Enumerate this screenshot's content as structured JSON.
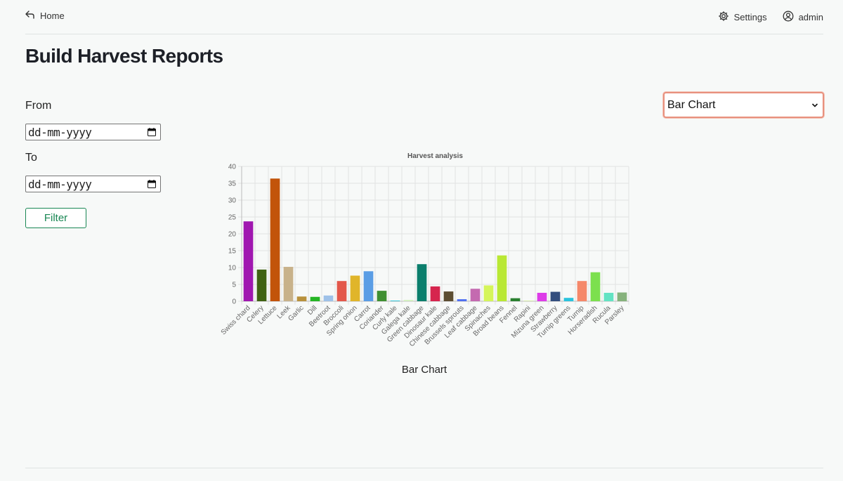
{
  "nav": {
    "home_label": "Home",
    "settings_label": "Settings",
    "user_label": "admin"
  },
  "page": {
    "title": "Build Harvest Reports"
  },
  "filters": {
    "from_label": "From",
    "from_value": "dd-mm-yyyy",
    "to_label": "To",
    "to_value": "dd-mm-yyyy",
    "filter_button": "Filter"
  },
  "chart_type_select": {
    "selected": "Bar Chart"
  },
  "chart_caption": "Bar Chart",
  "chart_data": {
    "type": "bar",
    "title": "Harvest analysis",
    "ylim": [
      0,
      40
    ],
    "yticks": [
      0,
      5,
      10,
      15,
      20,
      25,
      30,
      35,
      40
    ],
    "grid": true,
    "categories": [
      "Swiss chard",
      "Celery",
      "Lettuce",
      "Leek",
      "Garlic",
      "Dill",
      "Beetroot",
      "Broccoli",
      "Spring onion",
      "Carrot",
      "Coriander",
      "Curly kale",
      "Galega kale",
      "Green cabbage",
      "Dinosaur kale",
      "Chinese cabbage",
      "Brussels sprouts",
      "Leaf cabbage",
      "Spinaches",
      "Broad beans",
      "Fennel",
      "Rapini",
      "Mizuna green",
      "Strawberry",
      "Turnip greens",
      "Turnip",
      "Horseradish",
      "Rucula",
      "Parsley"
    ],
    "values": [
      23.7,
      9.4,
      36.4,
      10.2,
      1.4,
      1.3,
      1.7,
      6.0,
      7.6,
      8.9,
      3.1,
      0.2,
      0.4,
      11.0,
      4.4,
      2.9,
      0.6,
      3.7,
      4.7,
      13.6,
      0.9,
      0.2,
      2.5,
      2.8,
      1.0,
      6.0,
      8.6,
      2.5,
      2.6
    ],
    "colors": [
      "#a017b0",
      "#3f6212",
      "#c2540a",
      "#c8b28a",
      "#b8913c",
      "#24b524",
      "#9ec1e8",
      "#e3574a",
      "#e0b52a",
      "#5a9de5",
      "#3f8f32",
      "#2ec4d6",
      "#d3efc0",
      "#0b7e6c",
      "#d6254e",
      "#5c4d32",
      "#4f6ff0",
      "#c46ab0",
      "#d5f55a",
      "#b9e834",
      "#2a8030",
      "#d7eda6",
      "#dd3ce8",
      "#344f7e",
      "#29c3dd",
      "#f5886a",
      "#7ce04e",
      "#63e3c3",
      "#86b27c"
    ]
  }
}
